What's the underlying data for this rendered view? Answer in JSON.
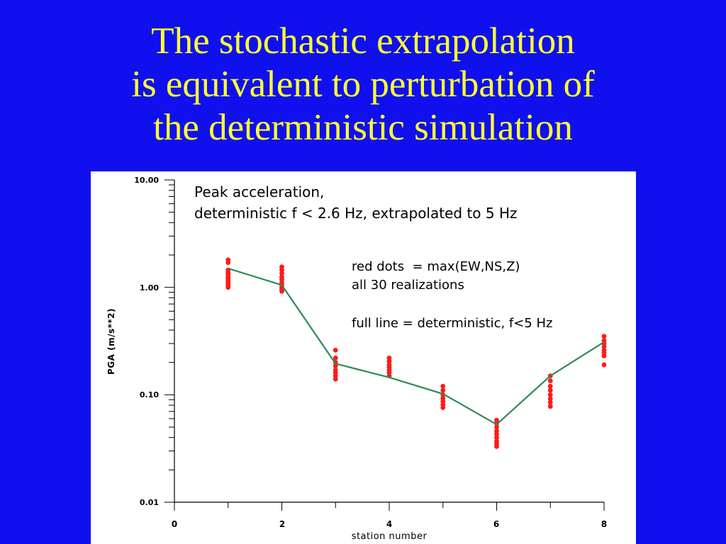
{
  "slide": {
    "title_lines": [
      "The stochastic extrapolation",
      "is equivalent to perturbation of",
      "the deterministic simulation"
    ],
    "background_color": "#1010ee",
    "title_color": "#ffff33"
  },
  "chart_data": {
    "type": "scatter",
    "title": "Peak acceleration,",
    "subtitle": "deterministic f < 2.6 Hz, extrapolated to 5 Hz",
    "xlabel": "station number",
    "ylabel": "PGA (m/s**2)",
    "xlim": [
      0,
      8
    ],
    "ylim": [
      0.01,
      10
    ],
    "y_scale": "log",
    "x_ticks": [
      "0",
      "2",
      "4",
      "6",
      "8"
    ],
    "y_ticks": [
      "10.00",
      "1.00",
      "0.10",
      "0.01"
    ],
    "grid": false,
    "annotations": [
      "red dots  = max(EW,NS,Z)",
      "all 30 realizations",
      "full line = deterministic, f<5 Hz"
    ],
    "series": [
      {
        "color": "#ff1a1a",
        "markers": "dots",
        "points": [
          {
            "x": 1,
            "y": 1.8
          },
          {
            "x": 1,
            "y": 1.7
          },
          {
            "x": 1,
            "y": 1.45
          },
          {
            "x": 1,
            "y": 1.38
          },
          {
            "x": 1,
            "y": 1.32
          },
          {
            "x": 1,
            "y": 1.25
          },
          {
            "x": 1,
            "y": 1.2
          },
          {
            "x": 1,
            "y": 1.15
          },
          {
            "x": 1,
            "y": 1.1
          },
          {
            "x": 1,
            "y": 1.05
          },
          {
            "x": 1,
            "y": 1.0
          },
          {
            "x": 2,
            "y": 1.55
          },
          {
            "x": 2,
            "y": 1.45
          },
          {
            "x": 2,
            "y": 1.35
          },
          {
            "x": 2,
            "y": 1.25
          },
          {
            "x": 2,
            "y": 1.18
          },
          {
            "x": 2,
            "y": 1.1
          },
          {
            "x": 2,
            "y": 1.05
          },
          {
            "x": 2,
            "y": 1.0
          },
          {
            "x": 2,
            "y": 0.96
          },
          {
            "x": 2,
            "y": 0.92
          },
          {
            "x": 3,
            "y": 0.26
          },
          {
            "x": 3,
            "y": 0.22
          },
          {
            "x": 3,
            "y": 0.2
          },
          {
            "x": 3,
            "y": 0.185
          },
          {
            "x": 3,
            "y": 0.17
          },
          {
            "x": 3,
            "y": 0.16
          },
          {
            "x": 3,
            "y": 0.15
          },
          {
            "x": 3,
            "y": 0.14
          },
          {
            "x": 4,
            "y": 0.22
          },
          {
            "x": 4,
            "y": 0.205
          },
          {
            "x": 4,
            "y": 0.19
          },
          {
            "x": 4,
            "y": 0.18
          },
          {
            "x": 4,
            "y": 0.17
          },
          {
            "x": 4,
            "y": 0.16
          },
          {
            "x": 4,
            "y": 0.15
          },
          {
            "x": 5,
            "y": 0.12
          },
          {
            "x": 5,
            "y": 0.11
          },
          {
            "x": 5,
            "y": 0.1
          },
          {
            "x": 5,
            "y": 0.093
          },
          {
            "x": 5,
            "y": 0.087
          },
          {
            "x": 5,
            "y": 0.081
          },
          {
            "x": 5,
            "y": 0.076
          },
          {
            "x": 6,
            "y": 0.058
          },
          {
            "x": 6,
            "y": 0.054
          },
          {
            "x": 6,
            "y": 0.05
          },
          {
            "x": 6,
            "y": 0.046
          },
          {
            "x": 6,
            "y": 0.043
          },
          {
            "x": 6,
            "y": 0.04
          },
          {
            "x": 6,
            "y": 0.037
          },
          {
            "x": 6,
            "y": 0.035
          },
          {
            "x": 6,
            "y": 0.033
          },
          {
            "x": 7,
            "y": 0.15
          },
          {
            "x": 7,
            "y": 0.135
          },
          {
            "x": 7,
            "y": 0.12
          },
          {
            "x": 7,
            "y": 0.11
          },
          {
            "x": 7,
            "y": 0.1
          },
          {
            "x": 7,
            "y": 0.092
          },
          {
            "x": 7,
            "y": 0.085
          },
          {
            "x": 7,
            "y": 0.078
          },
          {
            "x": 8,
            "y": 0.35
          },
          {
            "x": 8,
            "y": 0.32
          },
          {
            "x": 8,
            "y": 0.3
          },
          {
            "x": 8,
            "y": 0.28
          },
          {
            "x": 8,
            "y": 0.26
          },
          {
            "x": 8,
            "y": 0.245
          },
          {
            "x": 8,
            "y": 0.23
          },
          {
            "x": 8,
            "y": 0.19
          }
        ]
      },
      {
        "color": "#2e8b57",
        "markers": "line",
        "x": [
          1,
          2,
          3,
          4,
          5,
          6,
          7,
          8
        ],
        "y": [
          1.5,
          1.05,
          0.195,
          0.145,
          0.102,
          0.053,
          0.15,
          0.31
        ]
      }
    ]
  }
}
